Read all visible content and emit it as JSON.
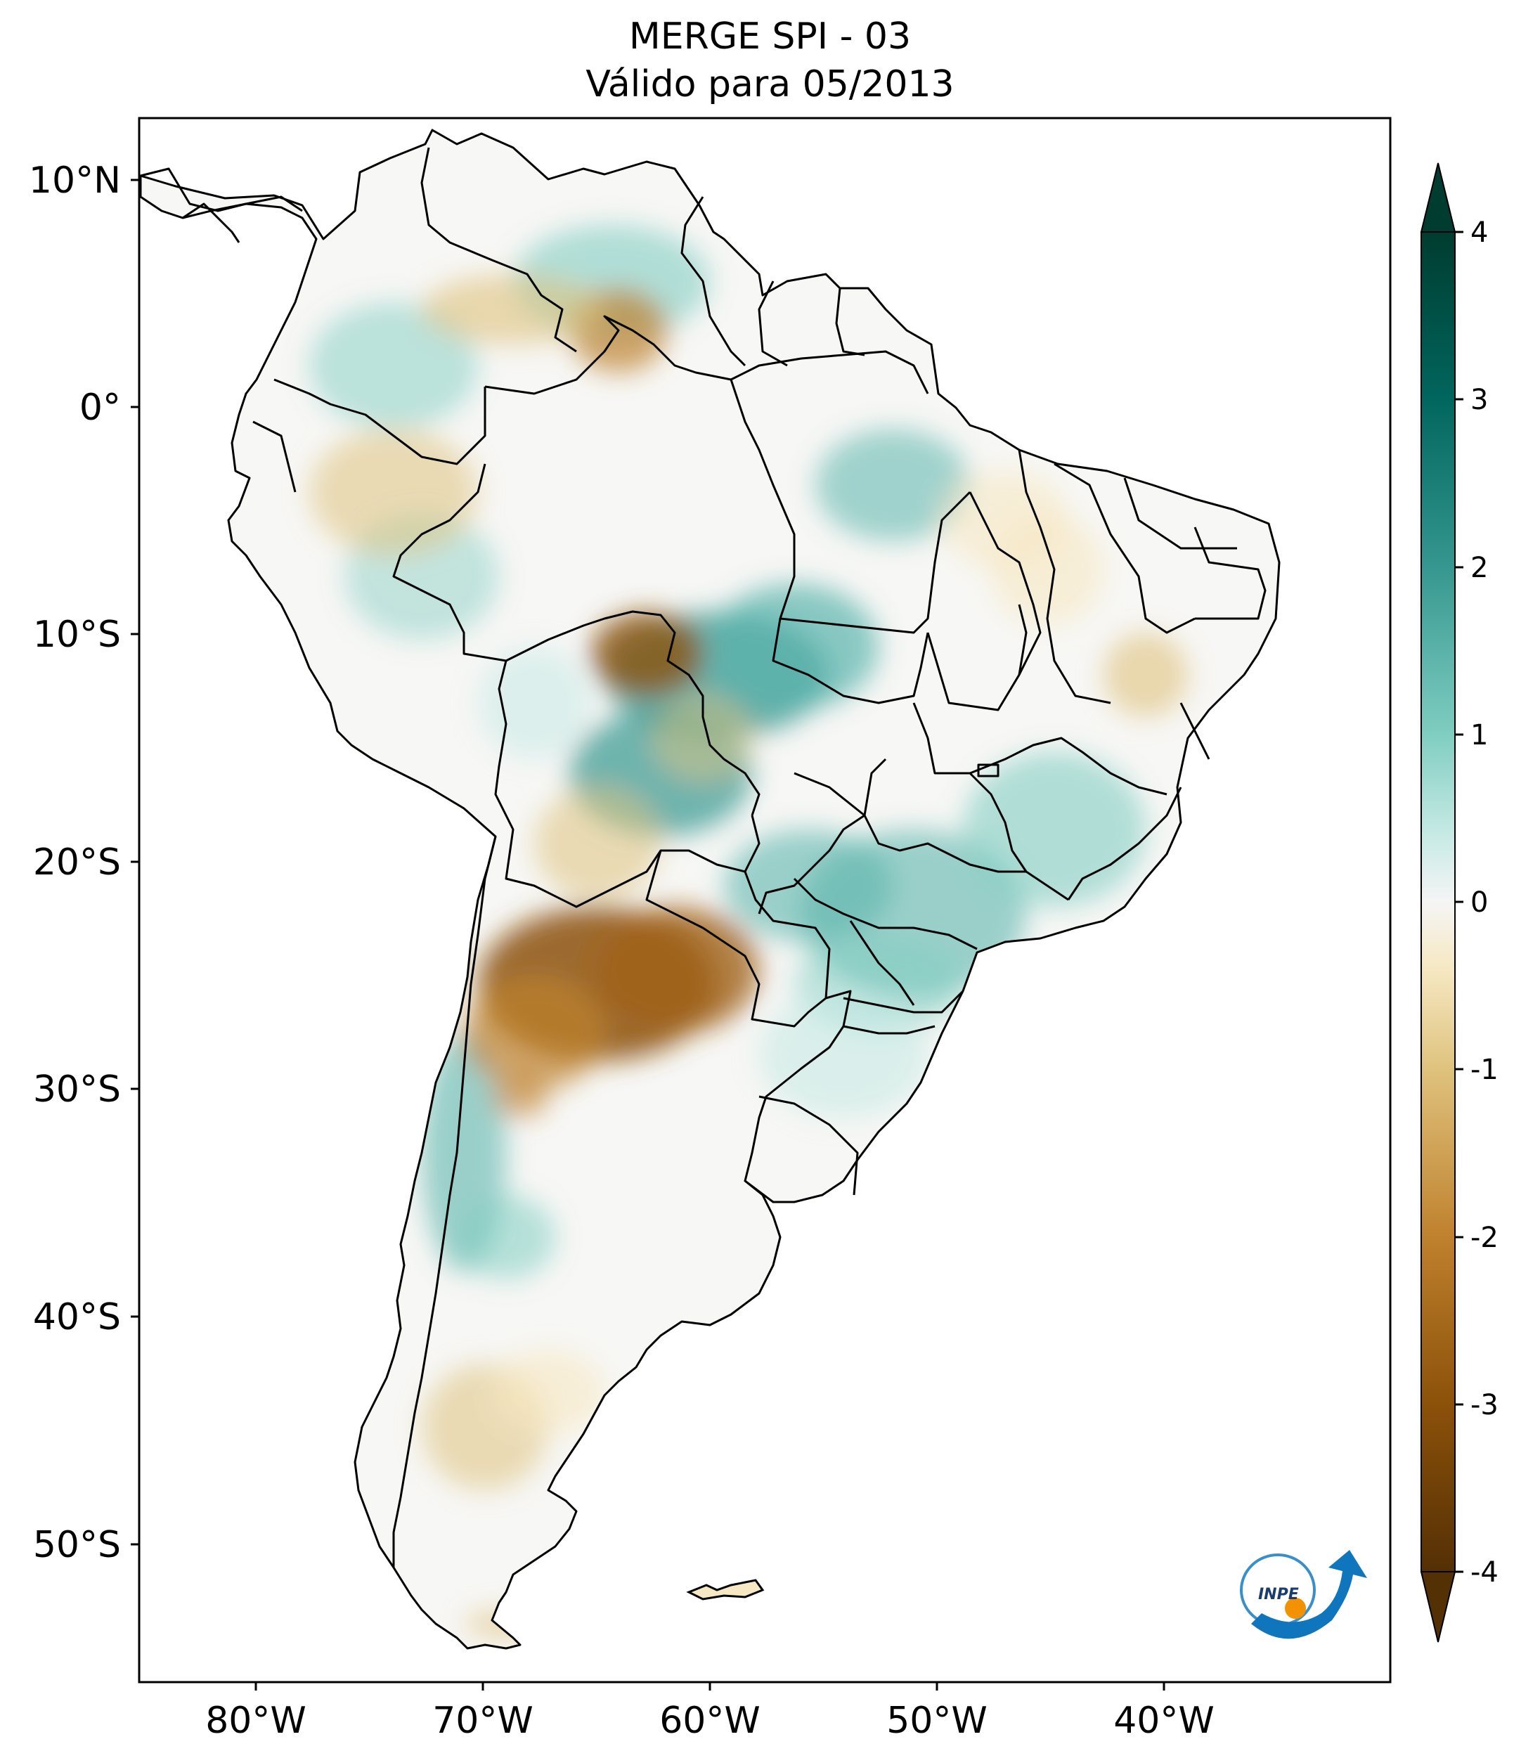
{
  "title": {
    "line1": "MERGE   SPI - 03",
    "line2": "Válido para 05/2013"
  },
  "axes": {
    "lat_labels": [
      "10°N",
      "0°",
      "10°S",
      "20°S",
      "30°S",
      "40°S",
      "50°S"
    ],
    "lon_labels": [
      "80°W",
      "70°W",
      "60°W",
      "50°W",
      "40°W"
    ]
  },
  "colorbar": {
    "ticks": [
      "4",
      "3",
      "2",
      "1",
      "0",
      "-1",
      "-2",
      "-3",
      "-4"
    ],
    "colors": {
      "dark_teal": "#003c30",
      "teal": "#35978f",
      "light_teal": "#c7eae5",
      "white": "#f5f5f5",
      "light_tan": "#f6e8c3",
      "tan": "#dfc27d",
      "brown": "#bf812d",
      "dark_brown": "#543005"
    }
  },
  "logo": {
    "text": "INPE"
  }
}
